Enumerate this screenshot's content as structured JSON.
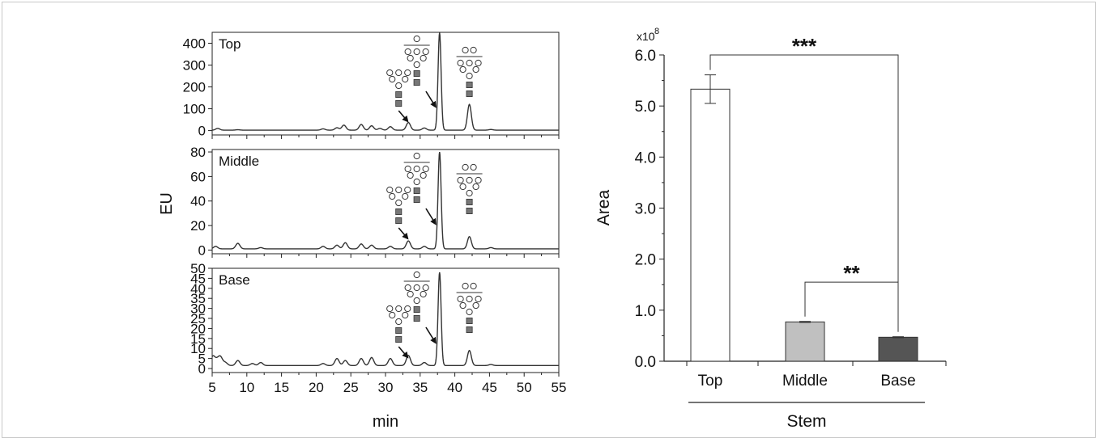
{
  "chart_data": [
    {
      "type": "line",
      "panel": "chromatograms",
      "xlabel": "min",
      "ylabel": "EU",
      "xlim": [
        5,
        55
      ],
      "x_ticks": [
        5,
        10,
        15,
        20,
        25,
        30,
        35,
        40,
        45,
        50,
        55
      ],
      "x_tick_labels": [
        "5",
        "10",
        "15",
        "20",
        "25",
        "30",
        "35",
        "40",
        "45",
        "50",
        "55"
      ],
      "peak_annotations_rt": [
        33.3,
        37.8,
        42.1
      ],
      "subplots": [
        {
          "title": "Top",
          "ylim": [
            -20,
            450
          ],
          "y_ticks": [
            0,
            100,
            200,
            300,
            400
          ],
          "y_tick_labels": [
            "0",
            "100",
            "200",
            "300",
            "400"
          ],
          "baseline": 2,
          "peaks": [
            {
              "x": 5.8,
              "y": 10
            },
            {
              "x": 8.7,
              "y": 4
            },
            {
              "x": 21.0,
              "y": 8
            },
            {
              "x": 23.0,
              "y": 13
            },
            {
              "x": 24.0,
              "y": 25
            },
            {
              "x": 26.5,
              "y": 28
            },
            {
              "x": 28.0,
              "y": 22
            },
            {
              "x": 29.2,
              "y": 10
            },
            {
              "x": 30.7,
              "y": 18
            },
            {
              "x": 33.3,
              "y": 37
            },
            {
              "x": 35.6,
              "y": 12
            },
            {
              "x": 37.8,
              "y": 448
            },
            {
              "x": 42.1,
              "y": 120
            },
            {
              "x": 45.2,
              "y": 5
            }
          ]
        },
        {
          "title": "Middle",
          "ylim": [
            -3,
            82
          ],
          "y_ticks": [
            0,
            20,
            40,
            60,
            80
          ],
          "y_tick_labels": [
            "0",
            "20",
            "40",
            "60",
            "80"
          ],
          "baseline": 1,
          "peaks": [
            {
              "x": 5.5,
              "y": 3
            },
            {
              "x": 8.7,
              "y": 5.5
            },
            {
              "x": 12.0,
              "y": 2
            },
            {
              "x": 21.0,
              "y": 3
            },
            {
              "x": 23.0,
              "y": 4
            },
            {
              "x": 24.2,
              "y": 6
            },
            {
              "x": 26.5,
              "y": 5
            },
            {
              "x": 28.0,
              "y": 4
            },
            {
              "x": 30.7,
              "y": 3
            },
            {
              "x": 33.3,
              "y": 7.5
            },
            {
              "x": 35.6,
              "y": 3
            },
            {
              "x": 37.8,
              "y": 80
            },
            {
              "x": 42.1,
              "y": 11
            },
            {
              "x": 45.2,
              "y": 2
            }
          ]
        },
        {
          "title": "Base",
          "ylim": [
            -2,
            50
          ],
          "y_ticks": [
            0,
            5,
            10,
            15,
            20,
            25,
            30,
            35,
            40,
            45,
            50
          ],
          "y_tick_labels": [
            "0",
            "5",
            "10",
            "15",
            "20",
            "25",
            "30",
            "35",
            "40",
            "45",
            "50"
          ],
          "baseline": 1.5,
          "peaks": [
            {
              "x": 5.1,
              "y": 6
            },
            {
              "x": 5.7,
              "y": 4
            },
            {
              "x": 6.2,
              "y": 5.5
            },
            {
              "x": 6.9,
              "y": 3
            },
            {
              "x": 8.7,
              "y": 4
            },
            {
              "x": 10.8,
              "y": 2.5
            },
            {
              "x": 12.0,
              "y": 3
            },
            {
              "x": 21.0,
              "y": 2.5
            },
            {
              "x": 23.0,
              "y": 5
            },
            {
              "x": 24.2,
              "y": 4
            },
            {
              "x": 26.5,
              "y": 5
            },
            {
              "x": 28.0,
              "y": 5.5
            },
            {
              "x": 30.7,
              "y": 5
            },
            {
              "x": 33.3,
              "y": 6.5
            },
            {
              "x": 35.6,
              "y": 3
            },
            {
              "x": 37.8,
              "y": 48
            },
            {
              "x": 42.1,
              "y": 9
            },
            {
              "x": 45.2,
              "y": 2
            }
          ]
        }
      ]
    },
    {
      "type": "bar",
      "panel": "areas",
      "categories": [
        "Top",
        "Middle",
        "Base"
      ],
      "values": [
        5.33,
        0.77,
        0.47
      ],
      "errors": [
        0.28,
        0.01,
        0.01
      ],
      "bar_colors": [
        "#ffffff",
        "#c0c0c0",
        "#555555"
      ],
      "xlabel": "Stem",
      "ylabel": "Area",
      "ylim": [
        0,
        6.0
      ],
      "y_ticks": [
        0,
        1,
        2,
        3,
        4,
        5,
        6
      ],
      "y_tick_labels": [
        "0.0",
        "1.0",
        "2.0",
        "3.0",
        "4.0",
        "5.0",
        "6.0"
      ],
      "y_multiplier_base": "x10",
      "y_multiplier_exp": "8",
      "significance": [
        {
          "from": "Top",
          "to": "Base",
          "label": "***",
          "level": 6.0
        },
        {
          "from": "Middle",
          "to": "Base",
          "label": "**",
          "level": 1.55
        }
      ]
    }
  ]
}
